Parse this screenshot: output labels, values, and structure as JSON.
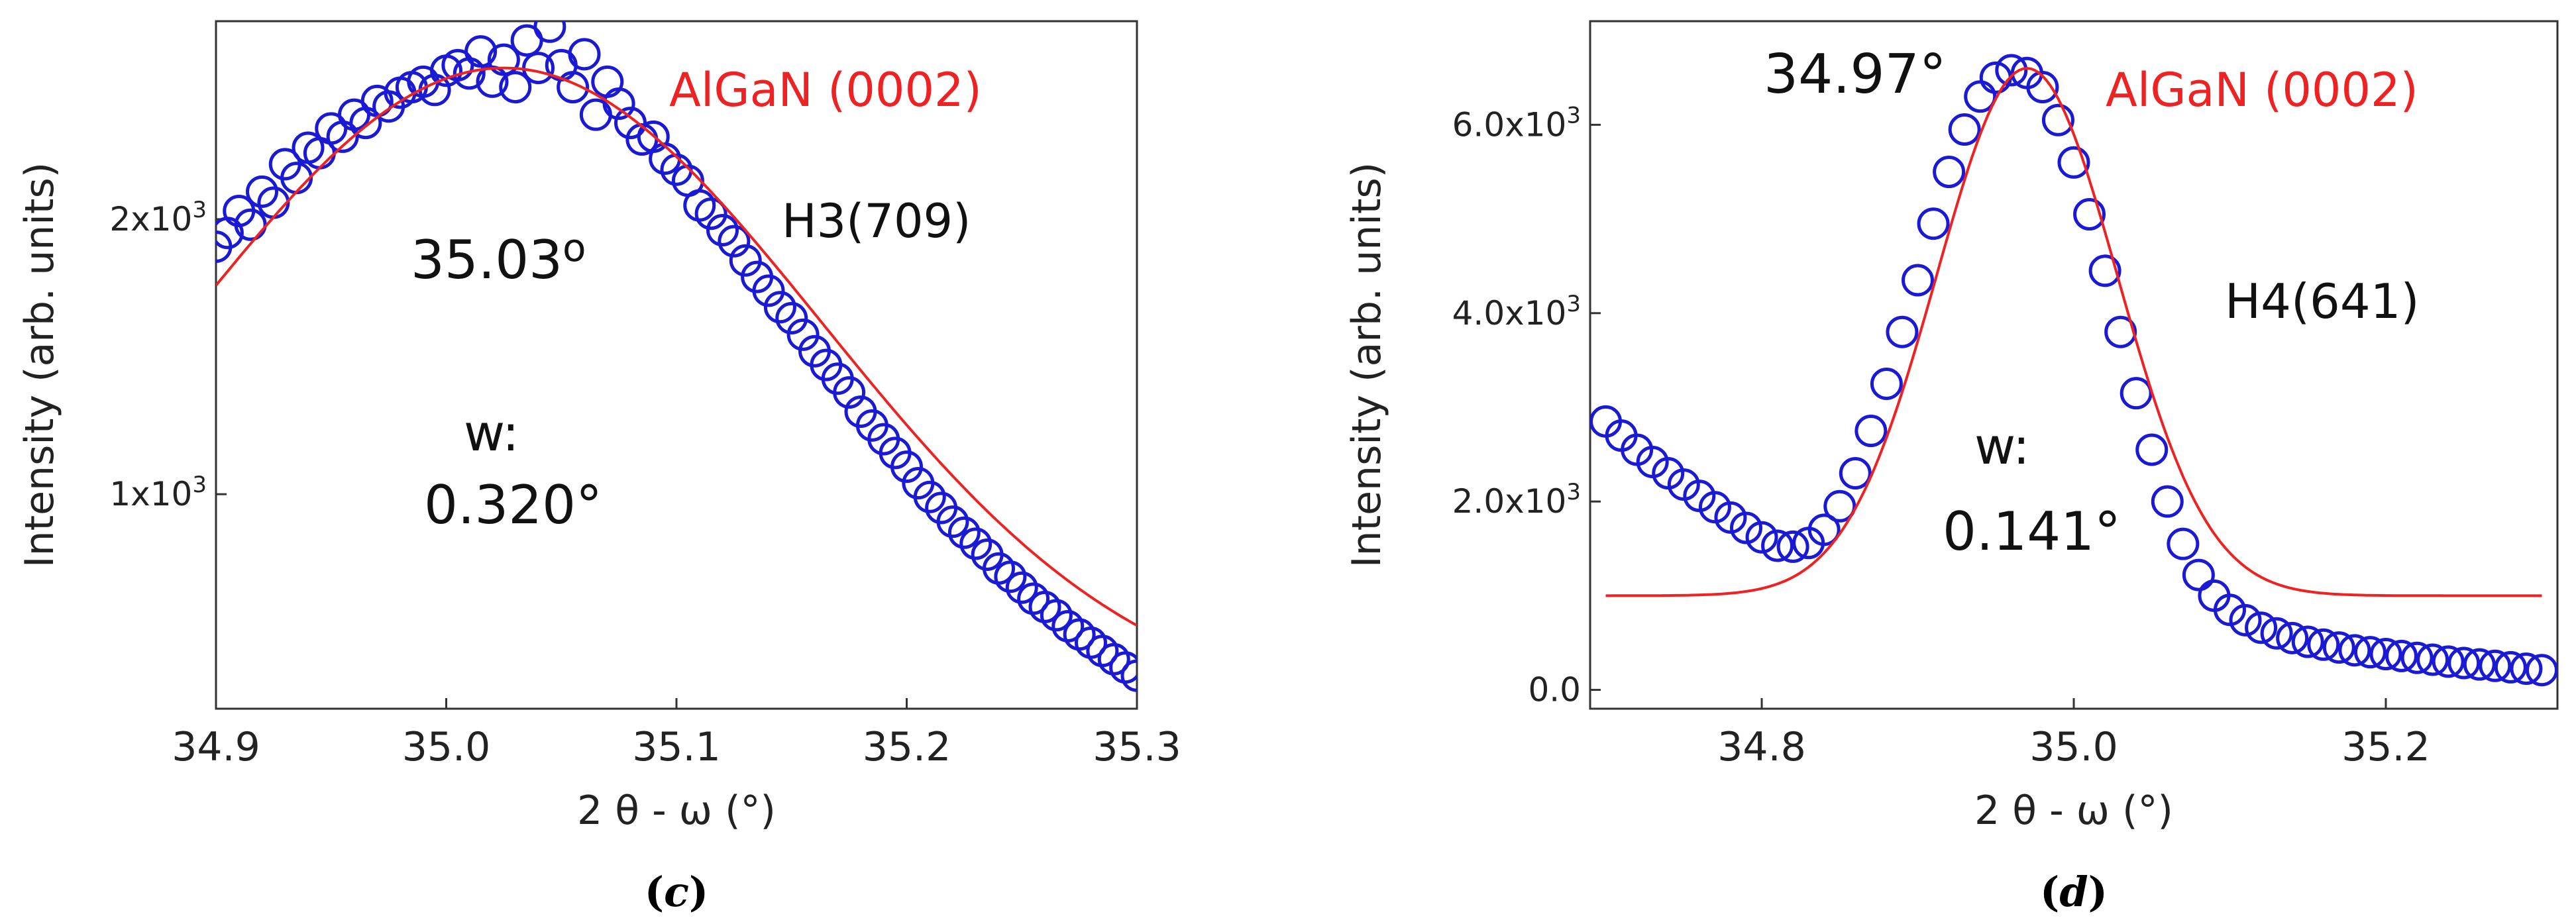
{
  "colors": {
    "data": "#1a1ad6",
    "fit": "#ee2222",
    "frame": "#333333"
  },
  "chart_data": [
    {
      "id": "c",
      "type": "scatter",
      "title": "",
      "caption_letter": "c",
      "xlabel": "2 θ - ω (°)",
      "ylabel": "Intensity (arb. units)",
      "xlim": [
        34.9,
        35.3
      ],
      "ylim": [
        220,
        2720
      ],
      "xticks": [
        {
          "v": 34.9,
          "label": "34.9"
        },
        {
          "v": 35.0,
          "label": "35.0"
        },
        {
          "v": 35.1,
          "label": "35.1"
        },
        {
          "v": 35.2,
          "label": "35.2"
        },
        {
          "v": 35.3,
          "label": "35.3"
        }
      ],
      "yticks": [
        {
          "v": 1000,
          "base": "1x10",
          "exp": "3"
        },
        {
          "v": 2000,
          "base": "2x10",
          "exp": "3"
        }
      ],
      "sample_label": "H3(709)",
      "peak_label": "AlGaN (0002)",
      "peak_position": "35.03",
      "peak_unit": "o",
      "width_label": "w:",
      "width_value": "0.320°",
      "fit": {
        "name": "fit",
        "type": "gaussian",
        "center": 35.025,
        "sigma": 0.138,
        "amplitude": 2350,
        "baseline": 200
      },
      "series": [
        {
          "name": "data",
          "x": [
            34.9,
            34.905,
            34.91,
            34.915,
            34.92,
            34.925,
            34.93,
            34.935,
            34.94,
            34.945,
            34.95,
            34.955,
            34.96,
            34.965,
            34.97,
            34.975,
            34.98,
            34.985,
            34.99,
            34.995,
            35.0,
            35.005,
            35.01,
            35.015,
            35.02,
            35.025,
            35.03,
            35.035,
            35.04,
            35.045,
            35.05,
            35.055,
            35.06,
            35.065,
            35.07,
            35.075,
            35.08,
            35.085,
            35.09,
            35.095,
            35.1,
            35.105,
            35.11,
            35.115,
            35.12,
            35.125,
            35.13,
            35.135,
            35.14,
            35.145,
            35.15,
            35.155,
            35.16,
            35.165,
            35.17,
            35.175,
            35.18,
            35.185,
            35.19,
            35.195,
            35.2,
            35.205,
            35.21,
            35.215,
            35.22,
            35.225,
            35.23,
            35.235,
            35.24,
            35.245,
            35.25,
            35.255,
            35.26,
            35.265,
            35.27,
            35.275,
            35.28,
            35.285,
            35.29,
            35.295,
            35.3
          ],
          "y": [
            1900,
            1950,
            2030,
            1980,
            2100,
            2060,
            2200,
            2150,
            2260,
            2240,
            2330,
            2300,
            2380,
            2350,
            2430,
            2410,
            2460,
            2480,
            2500,
            2470,
            2540,
            2560,
            2530,
            2610,
            2500,
            2580,
            2480,
            2650,
            2550,
            2700,
            2560,
            2480,
            2600,
            2380,
            2500,
            2420,
            2350,
            2290,
            2300,
            2220,
            2180,
            2140,
            2050,
            2020,
            1960,
            1920,
            1850,
            1790,
            1740,
            1680,
            1640,
            1580,
            1520,
            1470,
            1420,
            1370,
            1300,
            1250,
            1200,
            1150,
            1100,
            1040,
            990,
            950,
            900,
            860,
            820,
            780,
            730,
            700,
            660,
            620,
            590,
            560,
            520,
            490,
            460,
            430,
            400,
            370,
            340
          ]
        }
      ]
    },
    {
      "id": "d",
      "type": "scatter",
      "title": "",
      "caption_letter": "d",
      "xlabel": "2 θ - ω (°)",
      "ylabel": "Intensity (arb. units)",
      "xlim": [
        34.69,
        35.31
      ],
      "ylim": [
        -200,
        7100
      ],
      "xticks": [
        {
          "v": 34.8,
          "label": "34.8"
        },
        {
          "v": 35.0,
          "label": "35.0"
        },
        {
          "v": 35.2,
          "label": "35.2"
        }
      ],
      "yticks": [
        {
          "v": 0,
          "base": "0.0",
          "exp": ""
        },
        {
          "v": 2000,
          "base": "2.0x10",
          "exp": "3"
        },
        {
          "v": 4000,
          "base": "4.0x10",
          "exp": "3"
        },
        {
          "v": 6000,
          "base": "6.0x10",
          "exp": "3"
        }
      ],
      "sample_label": "H4(641)",
      "peak_label": "AlGaN (0002)",
      "peak_position": "34.97°",
      "width_label": "w:",
      "width_value": "0.141°",
      "fit": {
        "name": "fit",
        "type": "gaussian",
        "center": 34.97,
        "sigma": 0.058,
        "amplitude": 5600,
        "baseline": 1000,
        "x_from": 34.7,
        "x_to": 35.3
      },
      "series": [
        {
          "name": "data",
          "x": [
            34.7,
            34.71,
            34.72,
            34.73,
            34.74,
            34.75,
            34.76,
            34.77,
            34.78,
            34.79,
            34.8,
            34.81,
            34.82,
            34.83,
            34.84,
            34.85,
            34.86,
            34.87,
            34.88,
            34.89,
            34.9,
            34.91,
            34.92,
            34.93,
            34.94,
            34.95,
            34.96,
            34.97,
            34.98,
            34.99,
            35.0,
            35.01,
            35.02,
            35.03,
            35.04,
            35.05,
            35.06,
            35.07,
            35.08,
            35.09,
            35.1,
            35.11,
            35.12,
            35.13,
            35.14,
            35.15,
            35.16,
            35.17,
            35.18,
            35.19,
            35.2,
            35.21,
            35.22,
            35.23,
            35.24,
            35.25,
            35.26,
            35.27,
            35.28,
            35.29,
            35.3
          ],
          "y": [
            2850,
            2700,
            2550,
            2420,
            2300,
            2180,
            2060,
            1940,
            1830,
            1720,
            1620,
            1530,
            1520,
            1560,
            1700,
            1950,
            2300,
            2750,
            3250,
            3800,
            4350,
            4950,
            5500,
            5950,
            6300,
            6500,
            6580,
            6550,
            6400,
            6050,
            5600,
            5050,
            4450,
            3800,
            3150,
            2550,
            2000,
            1550,
            1220,
            1000,
            850,
            740,
            660,
            600,
            550,
            510,
            480,
            450,
            420,
            400,
            380,
            360,
            340,
            320,
            300,
            285,
            270,
            255,
            240,
            225,
            210
          ]
        }
      ]
    }
  ]
}
